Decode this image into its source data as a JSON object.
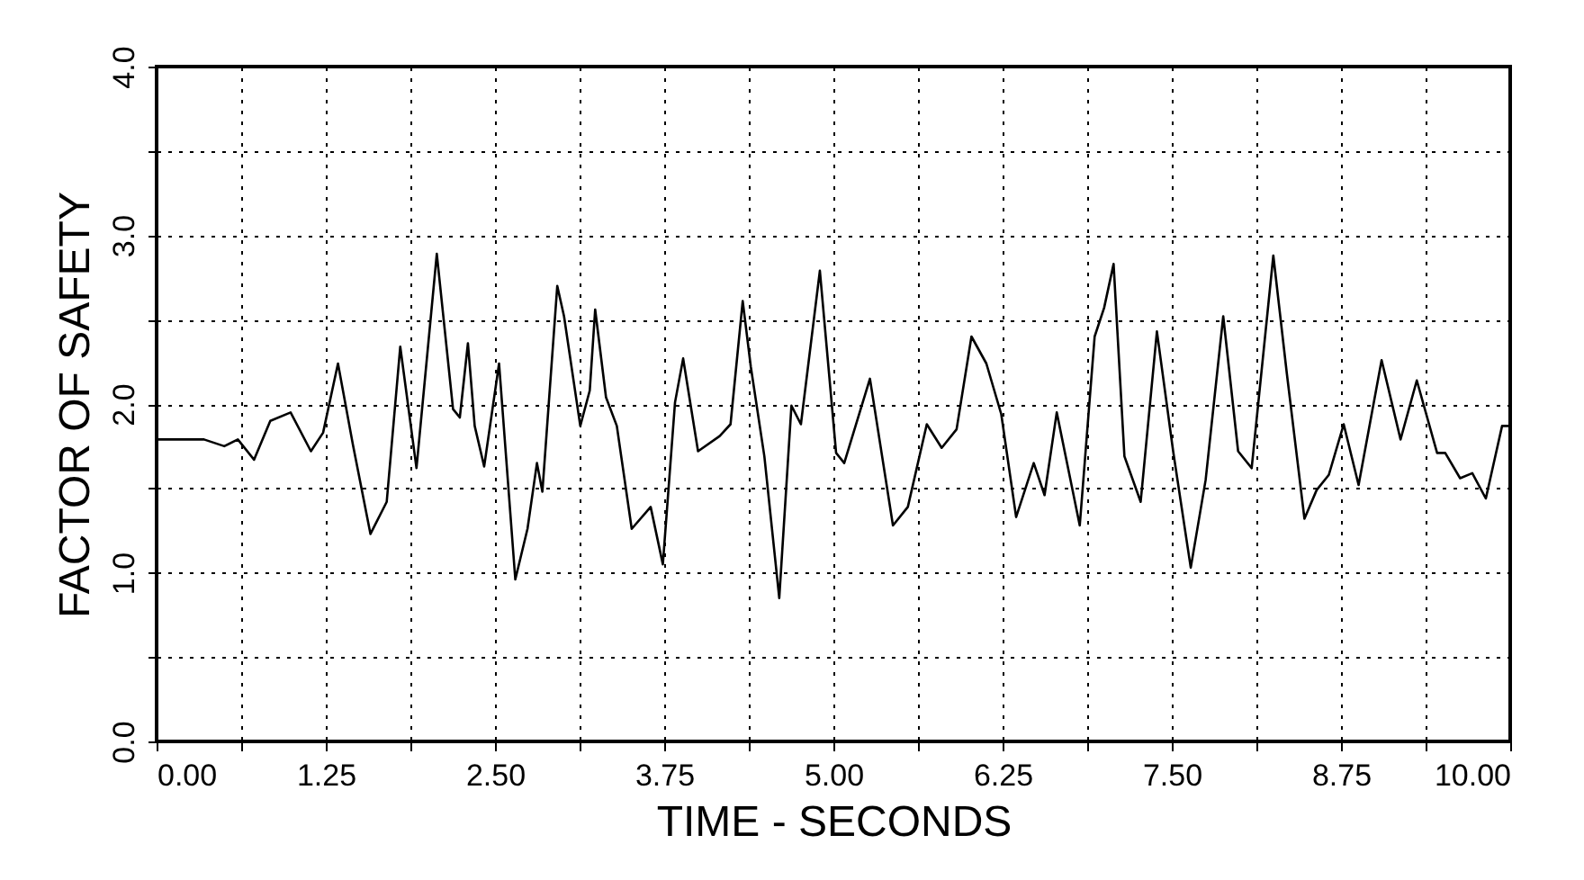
{
  "chart_data": {
    "type": "line",
    "xlabel": "TIME - SECONDS",
    "ylabel": "FACTOR OF SAFETY",
    "x": [
      0,
      0.35,
      0.5,
      0.6,
      0.72,
      0.84,
      0.99,
      1.14,
      1.23,
      1.34,
      1.45,
      1.58,
      1.7,
      1.8,
      1.92,
      2.07,
      2.19,
      2.24,
      2.3,
      2.35,
      2.42,
      2.53,
      2.65,
      2.74,
      2.81,
      2.85,
      2.96,
      3.01,
      3.13,
      3.2,
      3.24,
      3.32,
      3.4,
      3.51,
      3.65,
      3.74,
      3.83,
      3.89,
      4.0,
      4.16,
      4.24,
      4.33,
      4.39,
      4.49,
      4.6,
      4.69,
      4.76,
      4.9,
      5.02,
      5.08,
      5.27,
      5.44,
      5.55,
      5.69,
      5.8,
      5.91,
      6.02,
      6.13,
      6.24,
      6.35,
      6.48,
      6.56,
      6.65,
      6.82,
      6.93,
      7.0,
      7.07,
      7.15,
      7.27,
      7.39,
      7.51,
      7.64,
      7.75,
      7.88,
      7.99,
      8.09,
      8.25,
      8.35,
      8.48,
      8.57,
      8.66,
      8.77,
      8.88,
      9.05,
      9.19,
      9.31,
      9.46,
      9.52,
      9.63,
      9.72,
      9.82,
      9.94,
      10.0
    ],
    "series": [
      {
        "color": "#000000",
        "values": [
          1.79,
          1.79,
          1.75,
          1.79,
          1.67,
          1.9,
          1.95,
          1.72,
          1.83,
          2.24,
          1.76,
          1.23,
          1.42,
          2.34,
          1.62,
          2.89,
          1.97,
          1.92,
          2.36,
          1.87,
          1.63,
          2.24,
          0.96,
          1.26,
          1.65,
          1.48,
          2.7,
          2.52,
          1.87,
          2.08,
          2.56,
          2.04,
          1.87,
          1.26,
          1.39,
          1.05,
          2.01,
          2.27,
          1.72,
          1.81,
          1.88,
          2.61,
          2.22,
          1.69,
          0.85,
          1.99,
          1.88,
          2.79,
          1.71,
          1.65,
          2.15,
          1.28,
          1.39,
          1.88,
          1.74,
          1.85,
          2.4,
          2.24,
          1.94,
          1.33,
          1.65,
          1.46,
          1.95,
          1.28,
          2.4,
          2.57,
          2.83,
          1.69,
          1.42,
          2.43,
          1.72,
          1.03,
          1.55,
          2.52,
          1.72,
          1.62,
          2.88,
          2.18,
          1.32,
          1.49,
          1.58,
          1.88,
          1.52,
          2.26,
          1.79,
          2.14,
          1.71,
          1.71,
          1.56,
          1.59,
          1.44,
          1.87,
          1.87
        ]
      }
    ],
    "xlim": [
      0,
      10
    ],
    "ylim": [
      0,
      4
    ],
    "xticks": [
      {
        "value": 0,
        "label": "0.00"
      },
      {
        "value": 0.625,
        "label": null
      },
      {
        "value": 1.25,
        "label": "1.25"
      },
      {
        "value": 1.875,
        "label": null
      },
      {
        "value": 2.5,
        "label": "2.50"
      },
      {
        "value": 3.125,
        "label": null
      },
      {
        "value": 3.75,
        "label": "3.75"
      },
      {
        "value": 4.375,
        "label": null
      },
      {
        "value": 5,
        "label": "5.00"
      },
      {
        "value": 5.625,
        "label": null
      },
      {
        "value": 6.25,
        "label": "6.25"
      },
      {
        "value": 6.875,
        "label": null
      },
      {
        "value": 7.5,
        "label": "7.50"
      },
      {
        "value": 8.125,
        "label": null
      },
      {
        "value": 8.75,
        "label": "8.75"
      },
      {
        "value": 9.375,
        "label": null
      },
      {
        "value": 10,
        "label": "10.00"
      }
    ],
    "yticks": [
      {
        "value": 0,
        "label": "0.0"
      },
      {
        "value": 0.5,
        "label": null
      },
      {
        "value": 1,
        "label": "1.0"
      },
      {
        "value": 1.5,
        "label": null
      },
      {
        "value": 2,
        "label": "2.0"
      },
      {
        "value": 2.5,
        "label": null
      },
      {
        "value": 3,
        "label": "3.0"
      },
      {
        "value": 3.5,
        "label": null
      },
      {
        "value": 4,
        "label": "4.0"
      }
    ],
    "grid": true,
    "marker": "none",
    "line_style": "solid"
  }
}
